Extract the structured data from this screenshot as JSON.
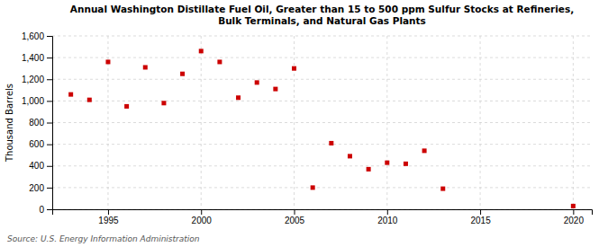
{
  "chart_data": {
    "type": "scatter",
    "title": "Annual Washington Distillate Fuel Oil, Greater than 15 to 500 ppm Sulfur Stocks at Refineries,\nBulk Terminals, and Natural Gas Plants",
    "ylabel": "Thousand Barrels",
    "source": "Source: U.S. Energy Information Administration",
    "x": [
      1993,
      1994,
      1995,
      1996,
      1997,
      1998,
      1999,
      2000,
      2001,
      2002,
      2003,
      2004,
      2005,
      2006,
      2007,
      2008,
      2009,
      2010,
      2011,
      2012,
      2013,
      2020
    ],
    "values": [
      1060,
      1010,
      1360,
      950,
      1310,
      980,
      1250,
      1460,
      1360,
      1030,
      1170,
      1110,
      1300,
      200,
      610,
      490,
      370,
      430,
      420,
      540,
      190,
      30
    ],
    "color": "#cc0000",
    "marker": "square",
    "xlim": [
      1992,
      2021
    ],
    "ylim": [
      0,
      1600
    ],
    "xticks": [
      1995,
      2000,
      2005,
      2010,
      2015,
      2020
    ],
    "yticks": [
      0,
      200,
      400,
      600,
      800,
      {
        "value": 1000,
        "label": "1,000"
      },
      {
        "value": 1200,
        "label": "1,200"
      },
      {
        "value": 1400,
        "label": "1,400"
      },
      {
        "value": 1600,
        "label": "1,600"
      }
    ],
    "grid": true
  }
}
